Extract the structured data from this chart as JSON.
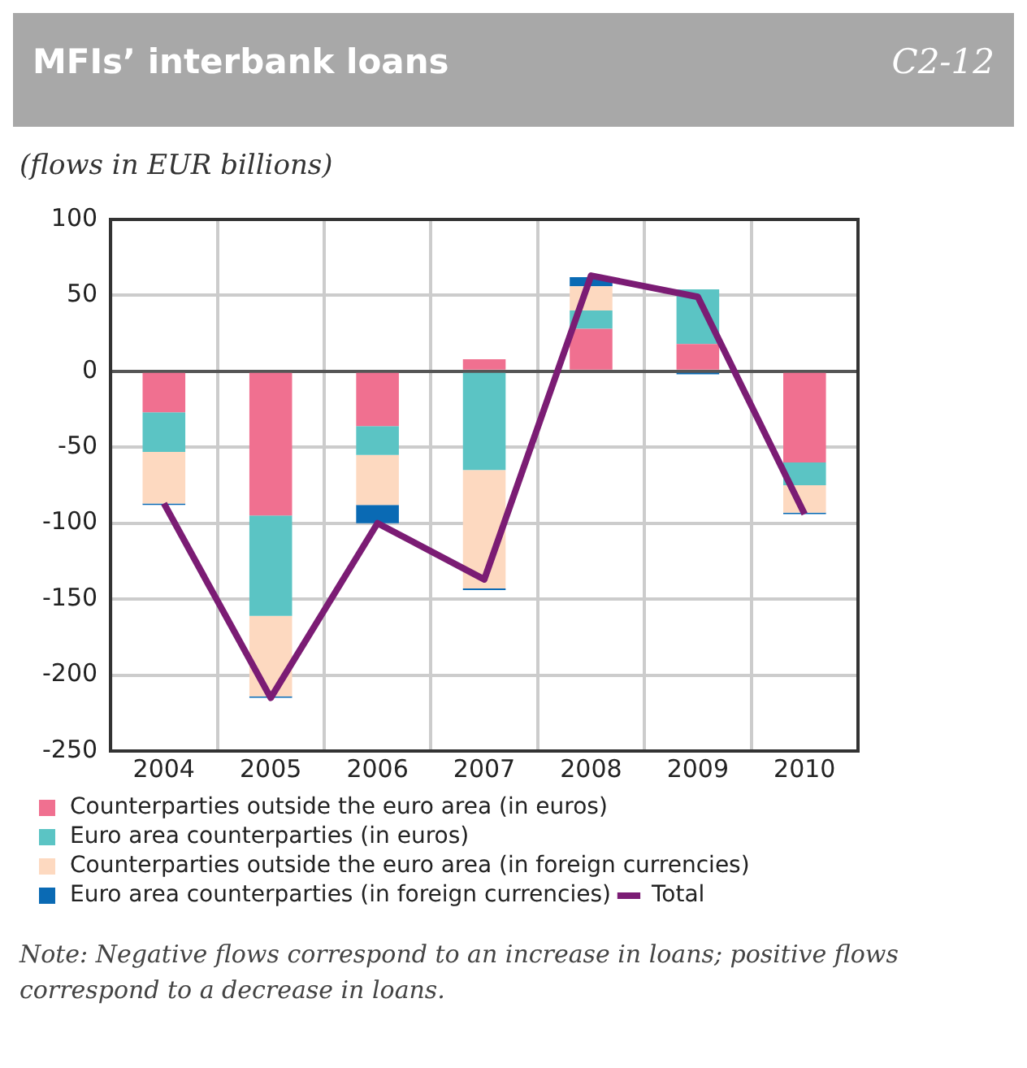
{
  "chart_data": {
    "type": "bar",
    "title": "MFIs’ interbank loans",
    "subtitle": "(flows in EUR billions)",
    "categories": [
      "2004",
      "2005",
      "2006",
      "2007",
      "2008",
      "2009",
      "2010"
    ],
    "series": [
      {
        "name": "Counterparties outside the euro area (in euros)",
        "color": "#f07090",
        "values": [
          -27,
          -95,
          -36,
          8,
          28,
          18,
          -60
        ]
      },
      {
        "name": "Euro area counterparties (in euros)",
        "color": "#5bc4c4",
        "values": [
          -26,
          -66,
          -19,
          -65,
          12,
          36,
          -15
        ]
      },
      {
        "name": "Counterparties outside the euro area (in foreign currencies)",
        "color": "#fdd9c0",
        "values": [
          -34,
          -53,
          -33,
          -78,
          16,
          null,
          -18
        ]
      },
      {
        "name": "Euro area counterparties (in foreign currencies)",
        "color": "#0a6ab4",
        "values": [
          -1,
          -1,
          -12,
          -1,
          6,
          -2,
          -1
        ]
      },
      {
        "name": "Total",
        "type": "line",
        "color": "#7b1c74",
        "values": [
          -87,
          -215,
          -100,
          -137,
          63,
          49,
          -94
        ]
      }
    ],
    "stacked": true,
    "ylim": [
      -250,
      100
    ],
    "yticks": [
      -250,
      -200,
      -150,
      -100,
      -50,
      0,
      50,
      100
    ],
    "grid": true,
    "legend": "bottom",
    "annotations": [
      "C2-12",
      "Note: Negative flows correspond to an increase in loans; positive flows correspond to a decrease in loans."
    ]
  }
}
